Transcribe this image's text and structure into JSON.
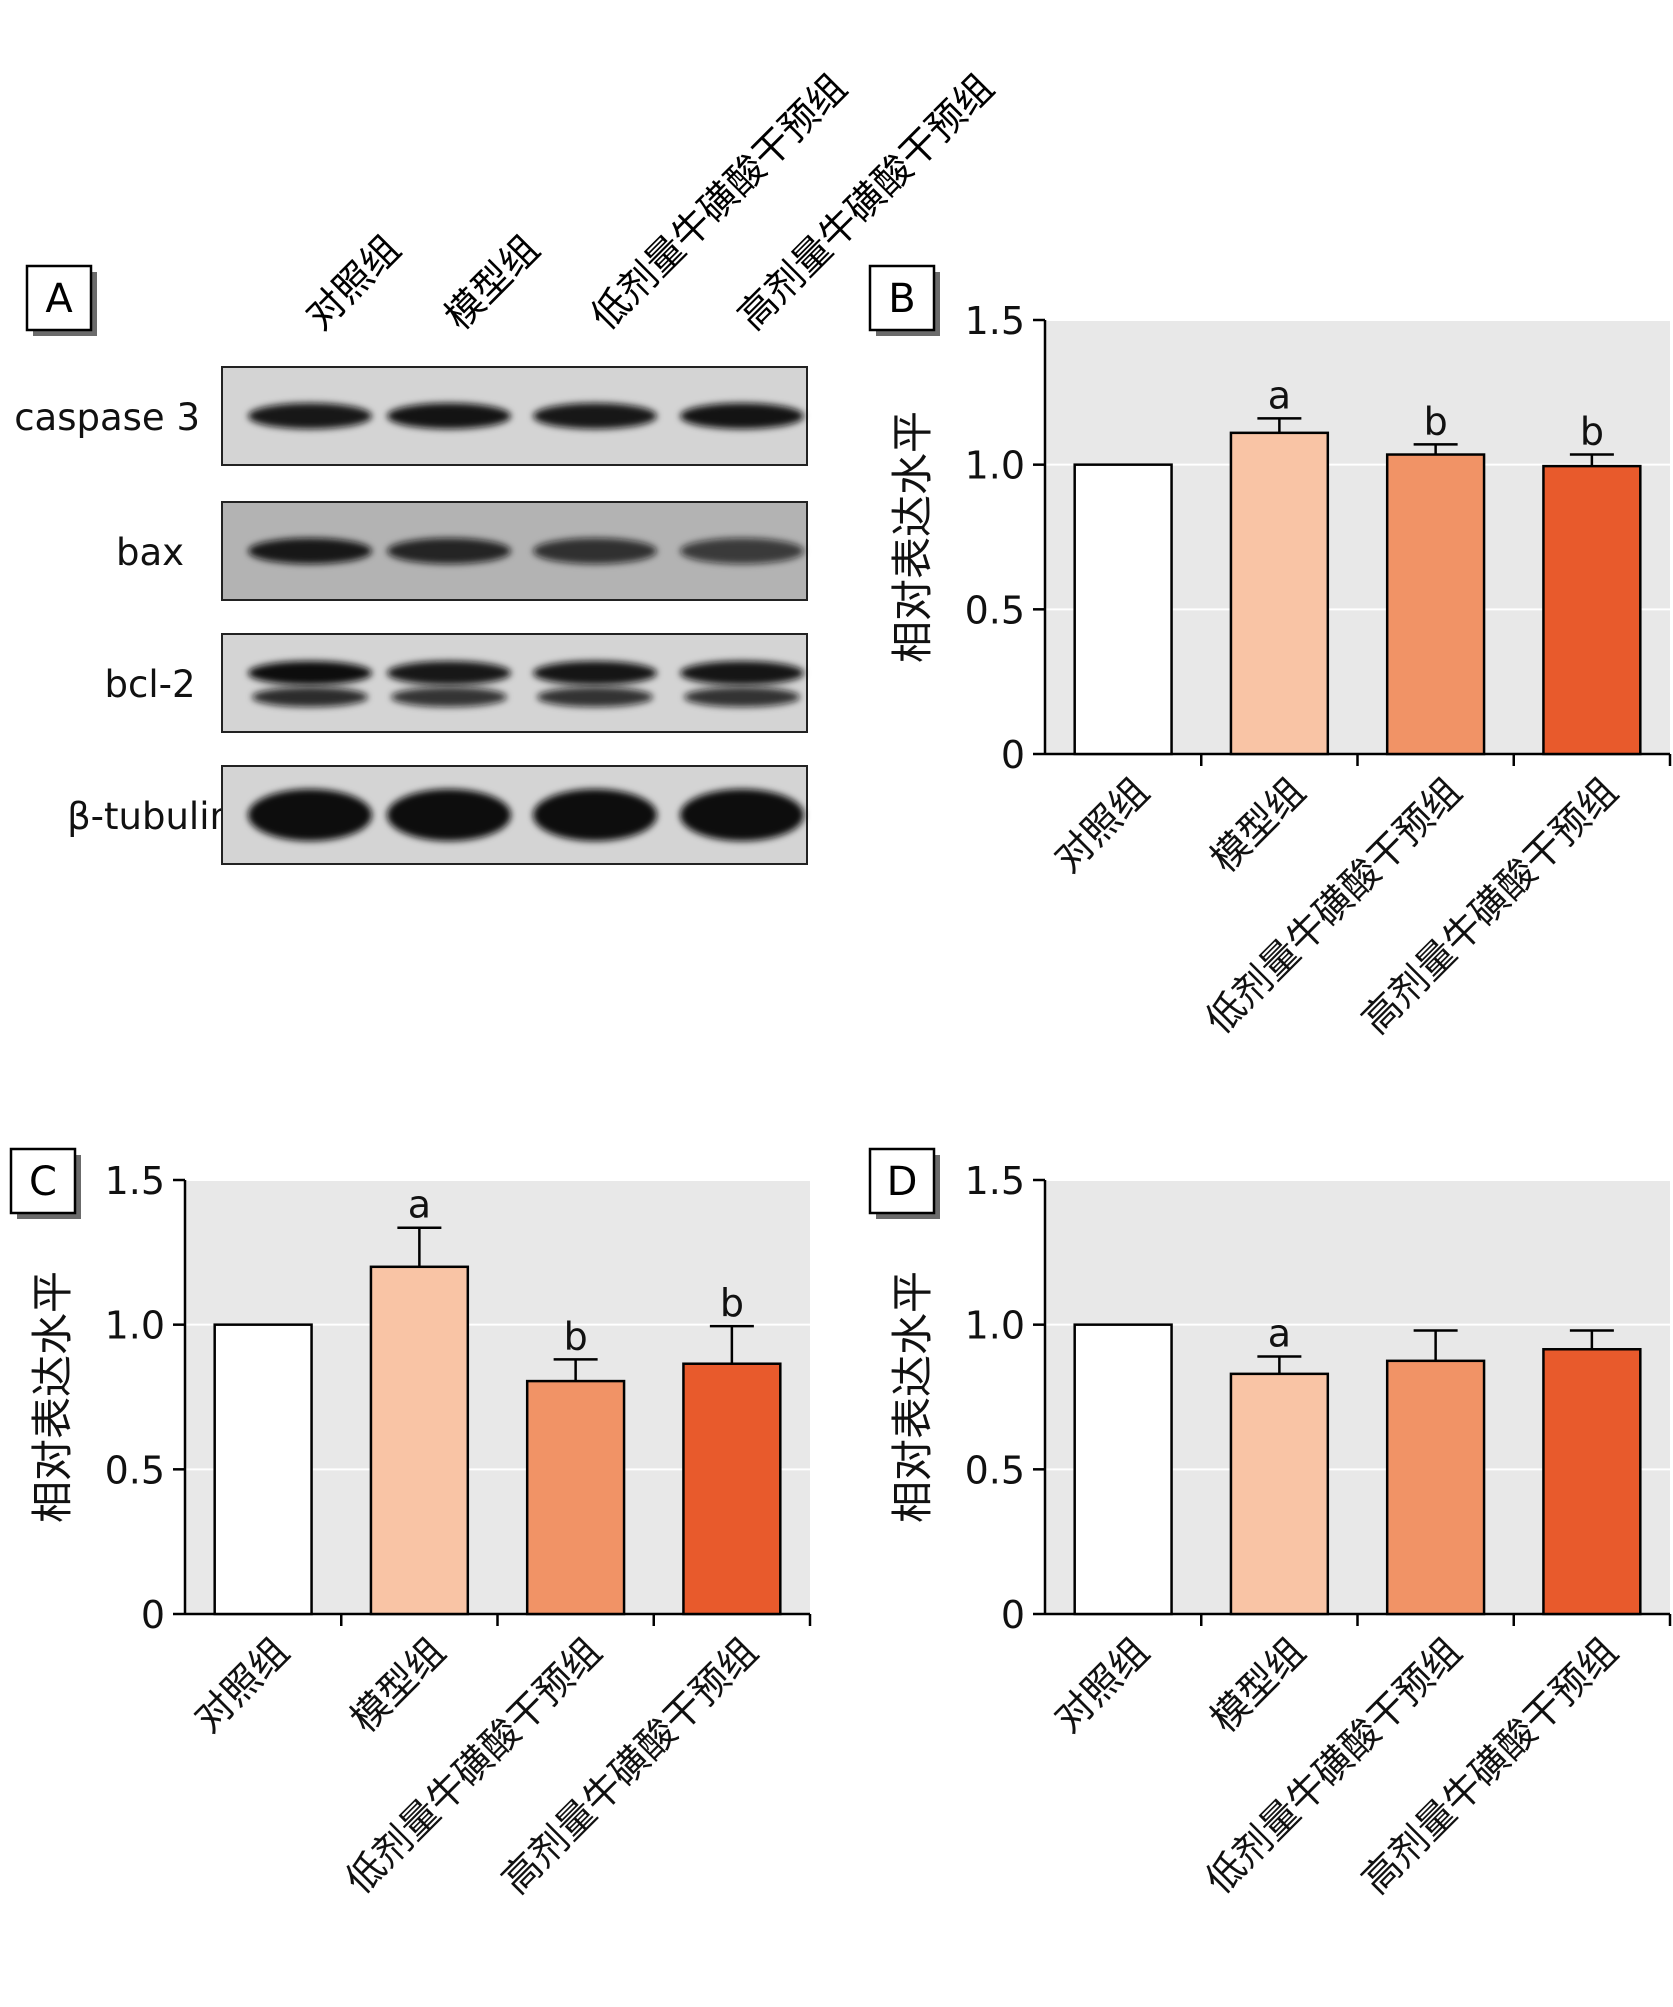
{
  "groups": [
    "对照组",
    "模型组",
    "低剂量牛磺酸干预组",
    "高剂量牛磺酸干预组"
  ],
  "colors": [
    "#ffffff",
    "#f9c4a5",
    "#f19366",
    "#e85a2c"
  ],
  "panel_a": {
    "label": "A",
    "blots": [
      {
        "protein": "caspase 3",
        "intensity": [
          0.92,
          0.95,
          0.93,
          0.96
        ]
      },
      {
        "protein": "bax",
        "intensity": [
          0.9,
          0.8,
          0.7,
          0.6
        ]
      },
      {
        "protein": "bcl-2",
        "intensity": [
          1.0,
          0.92,
          0.94,
          0.94
        ]
      },
      {
        "protein": "β-tubulin",
        "intensity": [
          1.0,
          1.0,
          1.0,
          1.0
        ]
      }
    ]
  },
  "chart_data": [
    {
      "type": "bar",
      "panel": "B",
      "categories": [
        "对照组",
        "模型组",
        "低剂量牛磺酸干预组",
        "高剂量牛磺酸干预组"
      ],
      "values": [
        1.0,
        1.11,
        1.035,
        0.995
      ],
      "errors": [
        0,
        0.05,
        0.035,
        0.04
      ],
      "annotations": [
        "",
        "a",
        "b",
        "b"
      ],
      "title": "",
      "xlabel": "",
      "ylabel": "相对表达水平",
      "ylim": [
        0,
        1.5
      ],
      "yticks": [
        0,
        0.5,
        1.0,
        1.5
      ],
      "ytick_labels": [
        "0",
        "0.5",
        "1.0",
        "1.5"
      ],
      "grid": true
    },
    {
      "type": "bar",
      "panel": "C",
      "categories": [
        "对照组",
        "模型组",
        "低剂量牛磺酸干预组",
        "高剂量牛磺酸干预组"
      ],
      "values": [
        1.0,
        1.2,
        0.805,
        0.865
      ],
      "errors": [
        0,
        0.135,
        0.075,
        0.13
      ],
      "annotations": [
        "",
        "a",
        "b",
        "b"
      ],
      "title": "",
      "xlabel": "",
      "ylabel": "相对表达水平",
      "ylim": [
        0,
        1.5
      ],
      "yticks": [
        0,
        0.5,
        1.0,
        1.5
      ],
      "ytick_labels": [
        "0",
        "0.5",
        "1.0",
        "1.5"
      ],
      "grid": true
    },
    {
      "type": "bar",
      "panel": "D",
      "categories": [
        "对照组",
        "模型组",
        "低剂量牛磺酸干预组",
        "高剂量牛磺酸干预组"
      ],
      "values": [
        1.0,
        0.83,
        0.875,
        0.915
      ],
      "errors": [
        0,
        0.06,
        0.105,
        0.065
      ],
      "annotations": [
        "",
        "a",
        "",
        ""
      ],
      "title": "",
      "xlabel": "",
      "ylabel": "相对表达水平",
      "ylim": [
        0,
        1.5
      ],
      "yticks": [
        0,
        0.5,
        1.0,
        1.5
      ],
      "ytick_labels": [
        "0",
        "0.5",
        "1.0",
        "1.5"
      ],
      "grid": true
    }
  ]
}
